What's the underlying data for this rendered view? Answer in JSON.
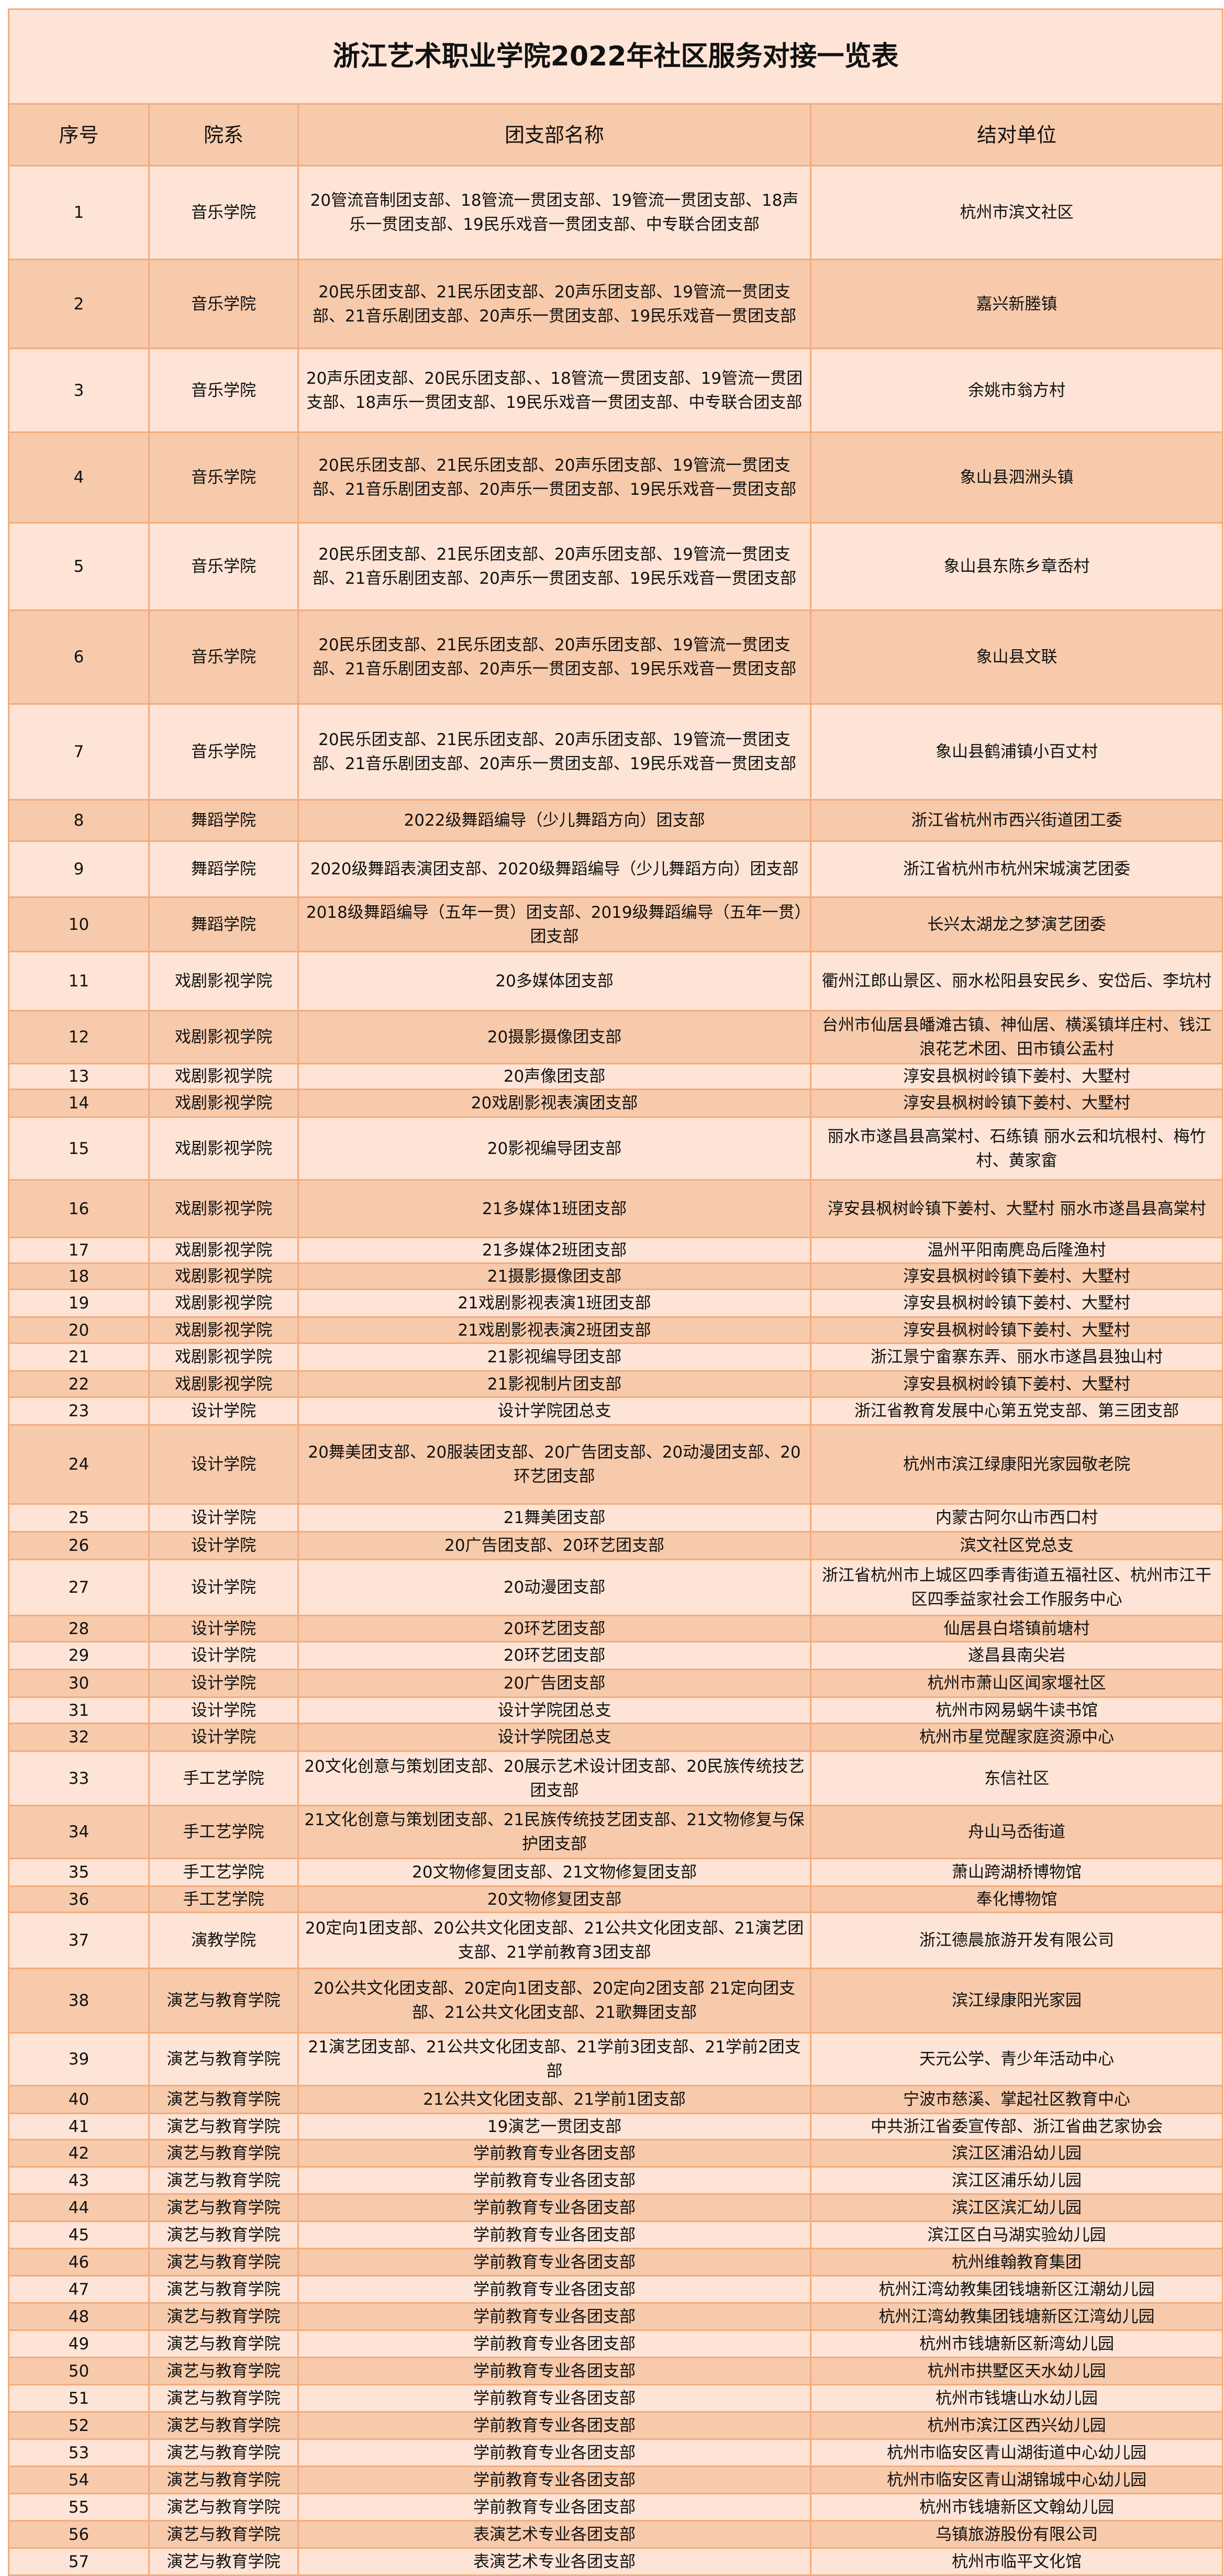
{
  "title": "浙江艺术职业学院2022年社区服务对接一览表",
  "headers": [
    "序号",
    "院系",
    "团支部名称",
    "结对单位"
  ],
  "colors": {
    "light_row": "#fde4d6",
    "dark_row": "#f7caab",
    "border": "#f2ac7e"
  },
  "rows": [
    [
      "1",
      "音乐学院",
      "20管流音制团支部、18管流一贯团支部、19管流一贯团支部、18声乐一贯团支部、19民乐戏音一贯团支部、中专联合团支部",
      "杭州市滨文社区"
    ],
    [
      "2",
      "音乐学院",
      "20民乐团支部、21民乐团支部、20声乐团支部、19管流一贯团支部、21音乐剧团支部、20声乐一贯团支部、19民乐戏音一贯团支部",
      "嘉兴新塍镇"
    ],
    [
      "3",
      "音乐学院",
      "20声乐团支部、20民乐团支部、、18管流一贯团支部、19管流一贯团支部、18声乐一贯团支部、19民乐戏音一贯团支部、中专联合团支部",
      "余姚市翁方村"
    ],
    [
      "4",
      "音乐学院",
      "20民乐团支部、21民乐团支部、20声乐团支部、19管流一贯团支部、21音乐剧团支部、20声乐一贯团支部、19民乐戏音一贯团支部",
      "象山县泗洲头镇"
    ],
    [
      "5",
      "音乐学院",
      "20民乐团支部、21民乐团支部、20声乐团支部、19管流一贯团支部、21音乐剧团支部、20声乐一贯团支部、19民乐戏音一贯团支部",
      "象山县东陈乡章岙村"
    ],
    [
      "6",
      "音乐学院",
      "20民乐团支部、21民乐团支部、20声乐团支部、19管流一贯团支部、21音乐剧团支部、20声乐一贯团支部、19民乐戏音一贯团支部",
      "象山县文联"
    ],
    [
      "7",
      "音乐学院",
      "20民乐团支部、21民乐团支部、20声乐团支部、19管流一贯团支部、21音乐剧团支部、20声乐一贯团支部、19民乐戏音一贯团支部",
      "象山县鹤浦镇小百丈村"
    ],
    [
      "8",
      "舞蹈学院",
      "2022级舞蹈编导（少儿舞蹈方向）团支部",
      "浙江省杭州市西兴街道团工委"
    ],
    [
      "9",
      "舞蹈学院",
      "2020级舞蹈表演团支部、2020级舞蹈编导（少儿舞蹈方向）团支部",
      "浙江省杭州市杭州宋城演艺团委"
    ],
    [
      "10",
      "舞蹈学院",
      "2018级舞蹈编导（五年一贯）团支部、2019级舞蹈编导（五年一贯）团支部",
      "长兴太湖龙之梦演艺团委"
    ],
    [
      "11",
      "戏剧影视学院",
      "20多媒体团支部",
      "衢州江郎山景区、丽水松阳县安民乡、安岱后、李坑村"
    ],
    [
      "12",
      "戏剧影视学院",
      "20摄影摄像团支部",
      "台州市仙居县皤滩古镇、神仙居、横溪镇垟庄村、钱江浪花艺术团、田市镇公盂村"
    ],
    [
      "13",
      "戏剧影视学院",
      "20声像团支部",
      "淳安县枫树岭镇下姜村、大墅村"
    ],
    [
      "14",
      "戏剧影视学院",
      "20戏剧影视表演团支部",
      "淳安县枫树岭镇下姜村、大墅村"
    ],
    [
      "15",
      "戏剧影视学院",
      "20影视编导团支部",
      "丽水市遂昌县高棠村、石练镇 丽水云和坑根村、梅竹村、黄家畲"
    ],
    [
      "16",
      "戏剧影视学院",
      "21多媒体1班团支部",
      "淳安县枫树岭镇下姜村、大墅村 丽水市遂昌县高棠村"
    ],
    [
      "17",
      "戏剧影视学院",
      "21多媒体2班团支部",
      "温州平阳南麂岛后隆渔村"
    ],
    [
      "18",
      "戏剧影视学院",
      "21摄影摄像团支部",
      "淳安县枫树岭镇下姜村、大墅村"
    ],
    [
      "19",
      "戏剧影视学院",
      "21戏剧影视表演1班团支部",
      "淳安县枫树岭镇下姜村、大墅村"
    ],
    [
      "20",
      "戏剧影视学院",
      "21戏剧影视表演2班团支部",
      "淳安县枫树岭镇下姜村、大墅村"
    ],
    [
      "21",
      "戏剧影视学院",
      "21影视编导团支部",
      "浙江景宁畲寨东弄、丽水市遂昌县独山村"
    ],
    [
      "22",
      "戏剧影视学院",
      "21影视制片团支部",
      "淳安县枫树岭镇下姜村、大墅村"
    ],
    [
      "23",
      "设计学院",
      "设计学院团总支",
      "浙江省教育发展中心第五党支部、第三团支部"
    ],
    [
      "24",
      "设计学院",
      "20舞美团支部、20服装团支部、20广告团支部、20动漫团支部、20环艺团支部",
      "杭州市滨江绿康阳光家园敬老院"
    ],
    [
      "25",
      "设计学院",
      "21舞美团支部",
      "内蒙古阿尔山市西口村"
    ],
    [
      "26",
      "设计学院",
      "20广告团支部、20环艺团支部",
      "滨文社区党总支"
    ],
    [
      "27",
      "设计学院",
      "20动漫团支部",
      "浙江省杭州市上城区四季青街道五福社区、杭州市江干区四季益家社会工作服务中心"
    ],
    [
      "28",
      "设计学院",
      "20环艺团支部",
      "仙居县白塔镇前塘村"
    ],
    [
      "29",
      "设计学院",
      "20环艺团支部",
      "遂昌县南尖岩"
    ],
    [
      "30",
      "设计学院",
      "20广告团支部",
      "杭州市萧山区闻家堰社区"
    ],
    [
      "31",
      "设计学院",
      "设计学院团总支",
      "杭州市网易蜗牛读书馆"
    ],
    [
      "32",
      "设计学院",
      "设计学院团总支",
      "杭州市星觉醒家庭资源中心"
    ],
    [
      "33",
      "手工艺学院",
      "20文化创意与策划团支部、20展示艺术设计团支部、20民族传统技艺团支部",
      "东信社区"
    ],
    [
      "34",
      "手工艺学院",
      "21文化创意与策划团支部、21民族传统技艺团支部、21文物修复与保护团支部",
      "舟山马岙街道"
    ],
    [
      "35",
      "手工艺学院",
      "20文物修复团支部、21文物修复团支部",
      "萧山跨湖桥博物馆"
    ],
    [
      "36",
      "手工艺学院",
      "20文物修复团支部",
      "奉化博物馆"
    ],
    [
      "37",
      "演教学院",
      "20定向1团支部、20公共文化团支部、21公共文化团支部、21演艺团支部、21学前教育3团支部",
      "浙江德晨旅游开发有限公司"
    ],
    [
      "38",
      "演艺与教育学院",
      "20公共文化团支部、20定向1团支部、20定向2团支部 21定向团支部、21公共文化团支部、21歌舞团支部",
      "滨江绿康阳光家园"
    ],
    [
      "39",
      "演艺与教育学院",
      "21演艺团支部、21公共文化团支部、21学前3团支部、21学前2团支部",
      "天元公学、青少年活动中心"
    ],
    [
      "40",
      "演艺与教育学院",
      "21公共文化团支部、21学前1团支部",
      "宁波市慈溪、掌起社区教育中心"
    ],
    [
      "41",
      "演艺与教育学院",
      "19演艺一贯团支部",
      "中共浙江省委宣传部、浙江省曲艺家协会"
    ],
    [
      "42",
      "演艺与教育学院",
      "学前教育专业各团支部",
      "滨江区浦沿幼儿园"
    ],
    [
      "43",
      "演艺与教育学院",
      "学前教育专业各团支部",
      "滨江区浦乐幼儿园"
    ],
    [
      "44",
      "演艺与教育学院",
      "学前教育专业各团支部",
      "滨江区滨汇幼儿园"
    ],
    [
      "45",
      "演艺与教育学院",
      "学前教育专业各团支部",
      "滨江区白马湖实验幼儿园"
    ],
    [
      "46",
      "演艺与教育学院",
      "学前教育专业各团支部",
      "杭州维翰教育集团"
    ],
    [
      "47",
      "演艺与教育学院",
      "学前教育专业各团支部",
      "杭州江湾幼教集团钱塘新区江潮幼儿园"
    ],
    [
      "48",
      "演艺与教育学院",
      "学前教育专业各团支部",
      "杭州江湾幼教集团钱塘新区江湾幼儿园"
    ],
    [
      "49",
      "演艺与教育学院",
      "学前教育专业各团支部",
      "杭州市钱塘新区新湾幼儿园"
    ],
    [
      "50",
      "演艺与教育学院",
      "学前教育专业各团支部",
      "杭州市拱墅区天水幼儿园"
    ],
    [
      "51",
      "演艺与教育学院",
      "学前教育专业各团支部",
      "杭州市钱塘山水幼儿园"
    ],
    [
      "52",
      "演艺与教育学院",
      "学前教育专业各团支部",
      "杭州市滨江区西兴幼儿园"
    ],
    [
      "53",
      "演艺与教育学院",
      "学前教育专业各团支部",
      "杭州市临安区青山湖街道中心幼儿园"
    ],
    [
      "54",
      "演艺与教育学院",
      "学前教育专业各团支部",
      "杭州市临安区青山湖锦城中心幼儿园"
    ],
    [
      "55",
      "演艺与教育学院",
      "学前教育专业各团支部",
      "杭州市钱塘新区文翰幼儿园"
    ],
    [
      "56",
      "演艺与教育学院",
      "表演艺术专业各团支部",
      "乌镇旅游股份有限公司"
    ],
    [
      "57",
      "演艺与教育学院",
      "表演艺术专业各团支部",
      "杭州市临平文化馆"
    ]
  ]
}
